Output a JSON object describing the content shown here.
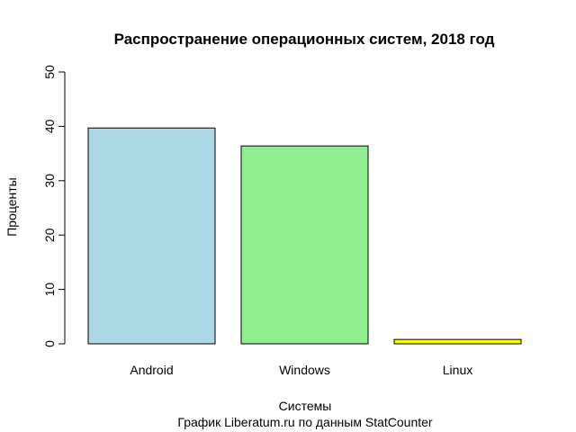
{
  "chart_data": {
    "type": "bar",
    "title": "Распространение операционных систем, 2018 год",
    "xlabel": "Системы",
    "ylabel": "Проценты",
    "caption": "График Liberatum.ru по данным StatCounter",
    "categories": [
      "Android",
      "Windows",
      "Linux"
    ],
    "values": [
      39.7,
      36.4,
      0.8
    ],
    "colors": [
      "#add8e6",
      "#90ee90",
      "#ffff00"
    ],
    "ylim": [
      0,
      50
    ],
    "yticks": [
      0,
      10,
      20,
      30,
      40,
      50
    ],
    "grid": false,
    "legend": "none"
  }
}
